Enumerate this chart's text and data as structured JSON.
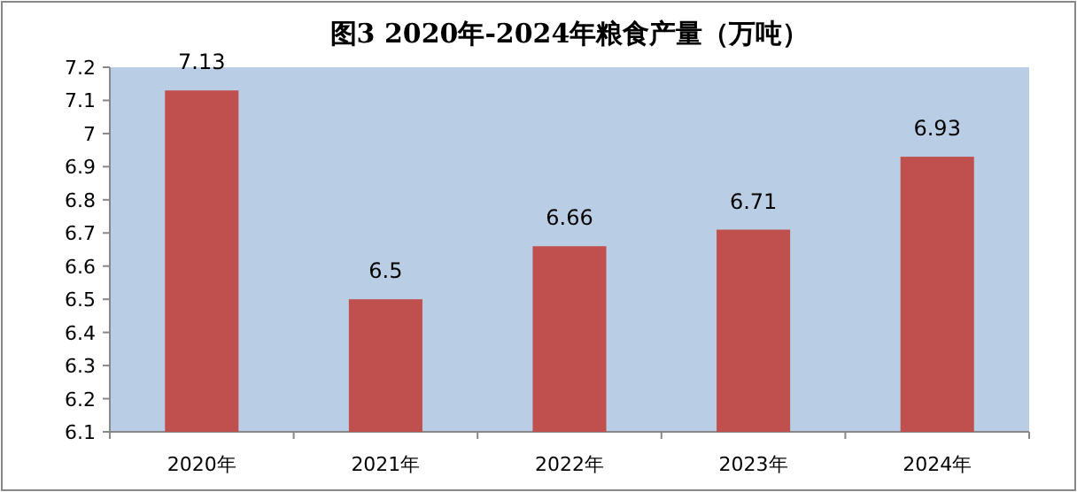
{
  "chart_data": {
    "type": "bar",
    "title": "图3  2020年-2024年粮食产量（万吨）",
    "categories": [
      "2020年",
      "2021年",
      "2022年",
      "2023年",
      "2024年"
    ],
    "values": [
      7.13,
      6.5,
      6.66,
      6.71,
      6.93
    ],
    "color": "#c0504d",
    "ylim": [
      6.1,
      7.2
    ],
    "yticks": [
      6.1,
      6.2,
      6.3,
      6.4,
      6.5,
      6.6,
      6.7,
      6.8,
      6.9,
      7,
      7.1,
      7.2
    ],
    "data_labels": true
  }
}
